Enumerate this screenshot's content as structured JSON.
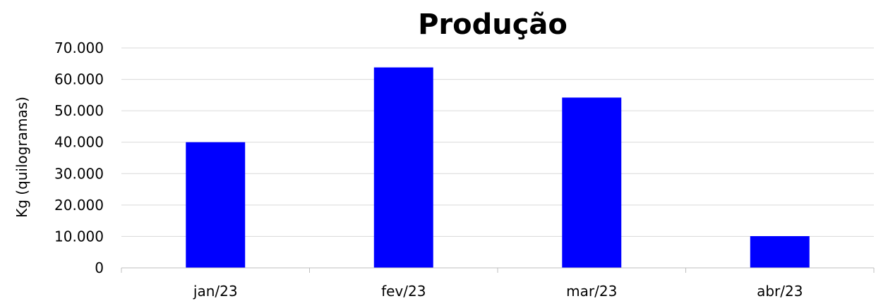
{
  "chart_data": {
    "type": "bar",
    "title": "Produção",
    "xlabel": "",
    "ylabel": "Kg (quilogramas)",
    "categories": [
      "jan/23",
      "fev/23",
      "mar/23",
      "abr/23"
    ],
    "values": [
      40000,
      63800,
      54200,
      10100
    ],
    "ylim": [
      0,
      70000
    ],
    "yticks": [
      0,
      10000,
      20000,
      30000,
      40000,
      50000,
      60000,
      70000
    ],
    "ytick_labels": [
      "0",
      "10.000",
      "20.000",
      "30.000",
      "40.000",
      "50.000",
      "60.000",
      "70.000"
    ],
    "grid": true,
    "legend": "none",
    "bar_color": "#0000ff"
  }
}
